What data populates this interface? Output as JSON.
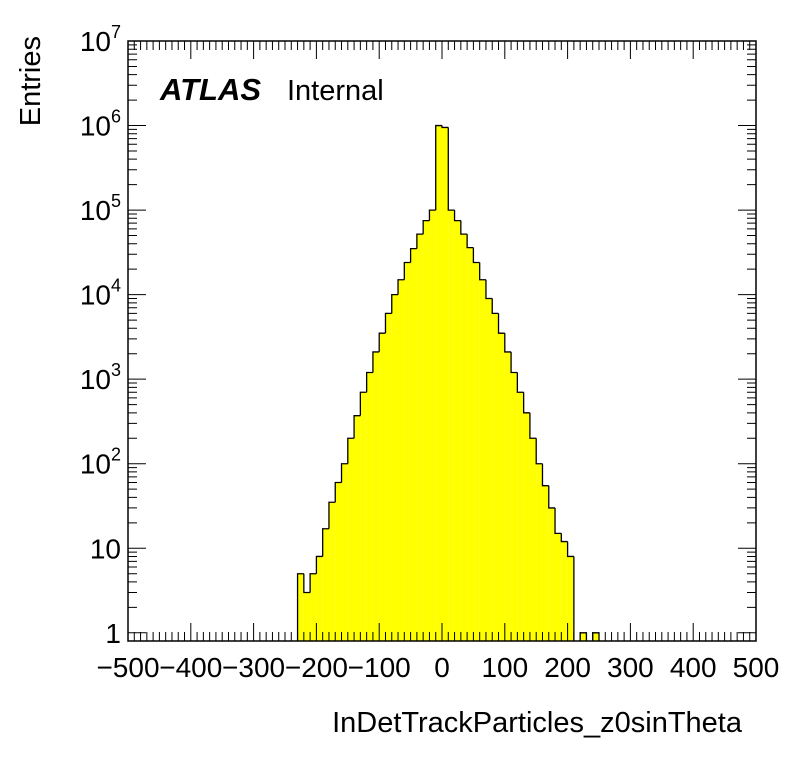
{
  "chart_data": {
    "type": "bar",
    "xlabel": "InDetTrackParticles_z0sinTheta",
    "ylabel": "Entries",
    "xlim": [
      -500,
      500
    ],
    "ylim": [
      0.8,
      10000000
    ],
    "log_y": true,
    "x_ticks": [
      "−500",
      "−400",
      "−300",
      "−200",
      "−100",
      "0",
      "100",
      "200",
      "300",
      "400",
      "500"
    ],
    "y_ticks": [
      {
        "base": "1",
        "exp": ""
      },
      {
        "base": "10",
        "exp": ""
      },
      {
        "base": "10",
        "exp": "2"
      },
      {
        "base": "10",
        "exp": "3"
      },
      {
        "base": "10",
        "exp": "4"
      },
      {
        "base": "10",
        "exp": "5"
      },
      {
        "base": "10",
        "exp": "6"
      },
      {
        "base": "10",
        "exp": "7"
      }
    ],
    "atlas_label": "ATLAS",
    "atlas_status": "Internal",
    "fill_color": "#ffff00",
    "bin_width": 10,
    "bins_x_low": [
      -230,
      -220,
      -210,
      -200,
      -190,
      -180,
      -170,
      -160,
      -150,
      -140,
      -130,
      -120,
      -110,
      -100,
      -90,
      -80,
      -70,
      -60,
      -50,
      -40,
      -30,
      -20,
      -10,
      0,
      10,
      20,
      30,
      40,
      50,
      60,
      70,
      80,
      90,
      100,
      110,
      120,
      130,
      140,
      150,
      160,
      170,
      180,
      190,
      200,
      210,
      220,
      230,
      240,
      250
    ],
    "values": [
      5,
      3,
      5,
      8,
      17,
      35,
      60,
      100,
      200,
      370,
      700,
      1200,
      2100,
      3500,
      6000,
      10000,
      15000,
      24000,
      35000,
      52000,
      75000,
      100000,
      1000000,
      950000,
      100000,
      75000,
      52000,
      36000,
      24000,
      15000,
      9000,
      6000,
      3500,
      2100,
      1200,
      700,
      400,
      200,
      100,
      55,
      30,
      15,
      12,
      8,
      0,
      1,
      0,
      1,
      0
    ]
  }
}
